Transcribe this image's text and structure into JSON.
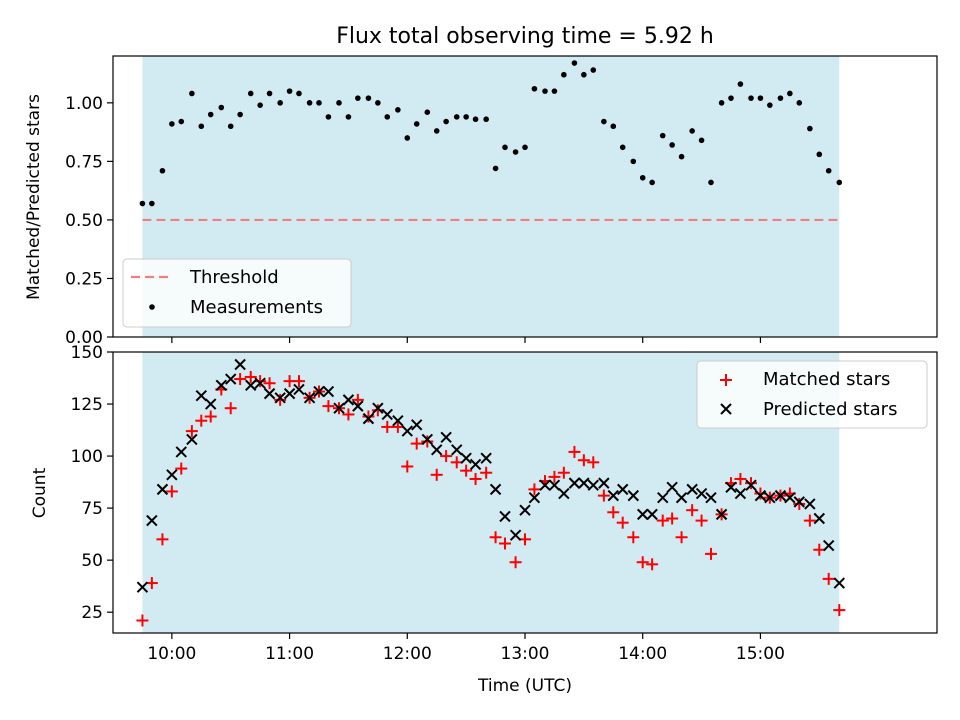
{
  "figure": {
    "title": "Flux total observing time = 5.92 h",
    "span_color": "#add8e6"
  },
  "chart_data": [
    {
      "type": "scatter",
      "ylabel": "Matched/Predicted stars",
      "xlabel": "",
      "xlim": [
        9.5,
        16.5
      ],
      "ylim": [
        0.0,
        1.2
      ],
      "yticks": [
        "0.00",
        "0.25",
        "0.50",
        "0.75",
        "1.00"
      ],
      "ytick_values": [
        0.0,
        0.25,
        0.5,
        0.75,
        1.0
      ],
      "shaded_span": [
        9.75,
        15.67
      ],
      "threshold": 0.5,
      "grid": false,
      "legend_position": "lower-left",
      "legend": [
        "Threshold",
        "Measurements"
      ],
      "colors": {
        "threshold": "#f08080",
        "measurements": "#000000"
      },
      "series": [
        {
          "name": "Measurements",
          "x": [
            9.75,
            9.83,
            9.92,
            10.0,
            10.08,
            10.17,
            10.25,
            10.33,
            10.42,
            10.5,
            10.58,
            10.67,
            10.75,
            10.83,
            10.92,
            11.0,
            11.08,
            11.17,
            11.25,
            11.33,
            11.42,
            11.5,
            11.58,
            11.67,
            11.75,
            11.83,
            11.92,
            12.0,
            12.08,
            12.17,
            12.25,
            12.33,
            12.42,
            12.5,
            12.58,
            12.67,
            12.75,
            12.83,
            12.92,
            13.0,
            13.08,
            13.17,
            13.25,
            13.33,
            13.42,
            13.5,
            13.58,
            13.67,
            13.75,
            13.83,
            13.92,
            14.0,
            14.08,
            14.17,
            14.25,
            14.33,
            14.42,
            14.5,
            14.58,
            14.67,
            14.75,
            14.83,
            14.92,
            15.0,
            15.08,
            15.17,
            15.25,
            15.33,
            15.42,
            15.5,
            15.58,
            15.67
          ],
          "y": [
            0.57,
            0.57,
            0.71,
            0.91,
            0.92,
            1.04,
            0.9,
            0.95,
            0.98,
            0.9,
            0.95,
            1.04,
            0.99,
            1.04,
            1.0,
            1.05,
            1.04,
            1.0,
            1.0,
            0.94,
            1.0,
            0.94,
            1.02,
            1.02,
            1.0,
            0.94,
            0.97,
            0.85,
            0.91,
            0.96,
            0.88,
            0.92,
            0.94,
            0.94,
            0.93,
            0.93,
            0.72,
            0.81,
            0.79,
            0.81,
            1.06,
            1.05,
            1.05,
            1.12,
            1.17,
            1.12,
            1.14,
            0.92,
            0.9,
            0.81,
            0.75,
            0.68,
            0.66,
            0.86,
            0.82,
            0.77,
            0.88,
            0.84,
            0.66,
            1.0,
            1.02,
            1.08,
            1.02,
            1.02,
            0.99,
            1.02,
            1.04,
            1.0,
            0.89,
            0.78,
            0.71,
            0.66
          ]
        }
      ]
    },
    {
      "type": "scatter",
      "ylabel": "Count",
      "xlabel": "Time (UTC)",
      "xlim": [
        9.5,
        16.5
      ],
      "ylim": [
        15,
        150
      ],
      "yticks": [
        "25",
        "50",
        "75",
        "100",
        "125",
        "150"
      ],
      "ytick_values": [
        25,
        50,
        75,
        100,
        125,
        150
      ],
      "xticks": [
        "10:00",
        "11:00",
        "12:00",
        "13:00",
        "14:00",
        "15:00"
      ],
      "xtick_values": [
        10,
        11,
        12,
        13,
        14,
        15
      ],
      "shaded_span": [
        9.75,
        15.67
      ],
      "grid": false,
      "legend_position": "upper-right",
      "legend": [
        "Matched stars",
        "Predicted stars"
      ],
      "colors": {
        "matched": "#ff0000",
        "predicted": "#000000"
      },
      "series": [
        {
          "name": "Matched stars",
          "x": [
            9.75,
            9.83,
            9.92,
            10.0,
            10.08,
            10.17,
            10.25,
            10.33,
            10.42,
            10.5,
            10.58,
            10.67,
            10.75,
            10.83,
            10.92,
            11.0,
            11.08,
            11.17,
            11.25,
            11.33,
            11.42,
            11.5,
            11.58,
            11.67,
            11.75,
            11.83,
            11.92,
            12.0,
            12.08,
            12.17,
            12.25,
            12.33,
            12.42,
            12.5,
            12.58,
            12.67,
            12.75,
            12.83,
            12.92,
            13.0,
            13.08,
            13.17,
            13.25,
            13.33,
            13.42,
            13.5,
            13.58,
            13.67,
            13.75,
            13.83,
            13.92,
            14.0,
            14.08,
            14.17,
            14.25,
            14.33,
            14.42,
            14.5,
            14.58,
            14.67,
            14.75,
            14.83,
            14.92,
            15.0,
            15.08,
            15.17,
            15.25,
            15.33,
            15.42,
            15.5,
            15.58,
            15.67
          ],
          "y": [
            21,
            39,
            60,
            83,
            94,
            112,
            117,
            119,
            132,
            123,
            137,
            138,
            136,
            135,
            127,
            136,
            136,
            128,
            131,
            124,
            123,
            120,
            127,
            119,
            122,
            114,
            114,
            95,
            106,
            107,
            91,
            100,
            97,
            93,
            89,
            92,
            61,
            58,
            49,
            60,
            84,
            88,
            90,
            92,
            102,
            98,
            97,
            81,
            73,
            68,
            61,
            49,
            48,
            69,
            70,
            61,
            74,
            69,
            53,
            72,
            87,
            89,
            87,
            82,
            80,
            81,
            82,
            77,
            69,
            55,
            41,
            26
          ]
        },
        {
          "name": "Predicted stars",
          "x": [
            9.75,
            9.83,
            9.92,
            10.0,
            10.08,
            10.17,
            10.25,
            10.33,
            10.42,
            10.5,
            10.58,
            10.67,
            10.75,
            10.83,
            10.92,
            11.0,
            11.08,
            11.17,
            11.25,
            11.33,
            11.42,
            11.5,
            11.58,
            11.67,
            11.75,
            11.83,
            11.92,
            12.0,
            12.08,
            12.17,
            12.25,
            12.33,
            12.42,
            12.5,
            12.58,
            12.67,
            12.75,
            12.83,
            12.92,
            13.0,
            13.08,
            13.17,
            13.25,
            13.33,
            13.42,
            13.5,
            13.58,
            13.67,
            13.75,
            13.83,
            13.92,
            14.0,
            14.08,
            14.17,
            14.25,
            14.33,
            14.42,
            14.5,
            14.58,
            14.67,
            14.75,
            14.83,
            14.92,
            15.0,
            15.08,
            15.17,
            15.25,
            15.33,
            15.42,
            15.5,
            15.58,
            15.67
          ],
          "y": [
            37,
            69,
            84,
            91,
            102,
            108,
            129,
            125,
            134,
            137,
            144,
            134,
            135,
            130,
            128,
            130,
            132,
            128,
            131,
            131,
            123,
            127,
            124,
            118,
            123,
            120,
            117,
            112,
            115,
            108,
            103,
            109,
            103,
            99,
            96,
            99,
            84,
            71,
            62,
            74,
            80,
            86,
            86,
            82,
            87,
            87,
            86,
            87,
            81,
            84,
            81,
            72,
            72,
            80,
            85,
            80,
            84,
            82,
            80,
            72,
            85,
            82,
            86,
            81,
            80,
            81,
            80,
            78,
            77,
            70,
            57,
            39
          ]
        }
      ]
    }
  ]
}
